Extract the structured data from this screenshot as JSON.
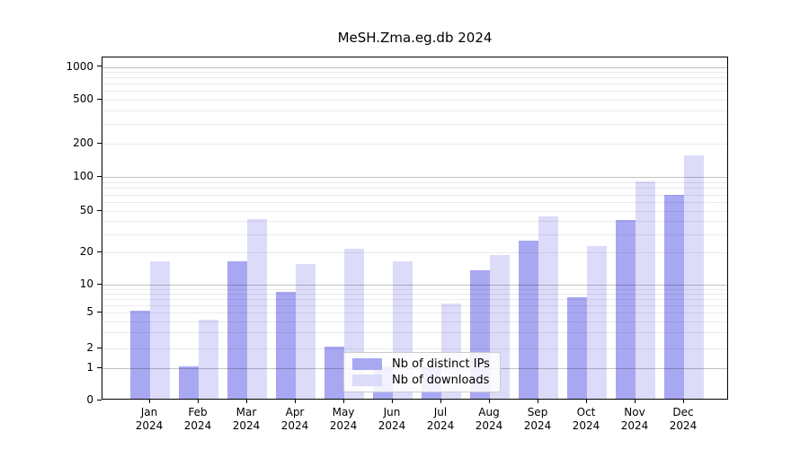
{
  "window": {
    "title": "MeSH.Zma.eg.db 2024"
  },
  "chart_data": {
    "type": "bar",
    "title": "MeSH.Zma.eg.db 2024",
    "subtitle": "",
    "xlabel": "",
    "ylabel": "",
    "categories": [
      "Jan 2024",
      "Feb 2024",
      "Mar 2024",
      "Apr 2024",
      "May 2024",
      "Jun 2024",
      "Jul 2024",
      "Aug 2024",
      "Sep 2024",
      "Oct 2024",
      "Nov 2024",
      "Dec 2024"
    ],
    "series": [
      {
        "name": "Nb of distinct IPs",
        "color": "#a8a8f2",
        "values": [
          5,
          1,
          16,
          8,
          2,
          1,
          1,
          13,
          25,
          7,
          39,
          67
        ]
      },
      {
        "name": "Nb of downloads",
        "color": "#dcdcfa",
        "values": [
          16,
          4,
          40,
          15,
          21,
          16,
          6,
          18,
          43,
          22,
          88,
          150
        ]
      }
    ],
    "yticks": [
      0,
      1,
      2,
      5,
      10,
      20,
      50,
      100,
      200,
      500,
      1000
    ],
    "yscale": "log-like with 0 at baseline",
    "ylim": [
      0,
      1200
    ],
    "grid": "horizontal major lines at 1/10/100/1000, faint minor log lines",
    "legend_position": "inside bottom-center",
    "legend_entries": [
      "Nb of distinct IPs",
      "Nb of downloads"
    ]
  }
}
